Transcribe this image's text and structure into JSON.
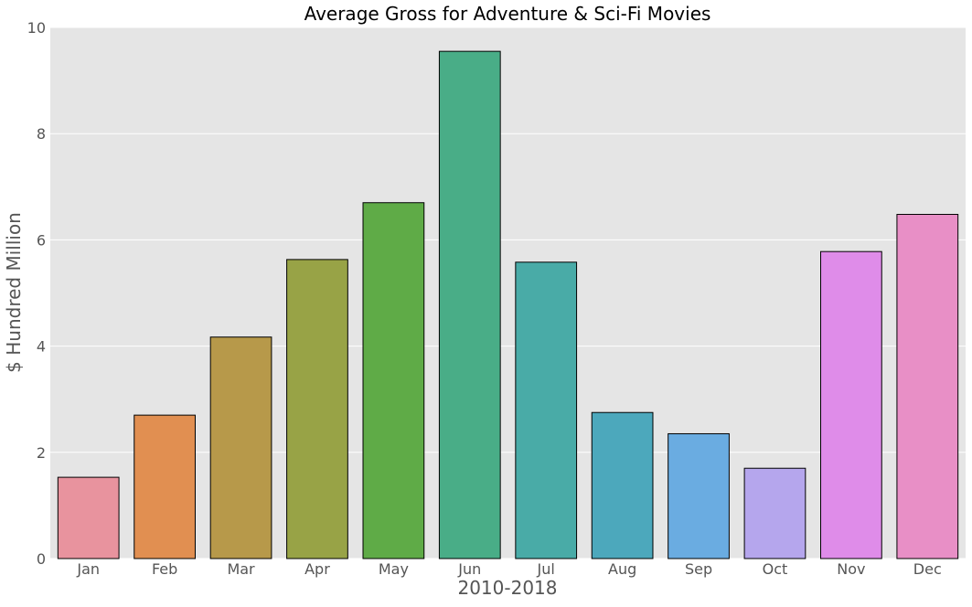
{
  "chart_data": {
    "type": "bar",
    "title": "Average Gross for Adventure & Sci-Fi Movies",
    "xlabel": "2010-2018",
    "ylabel": "$ Hundred Million",
    "categories": [
      "Jan",
      "Feb",
      "Mar",
      "Apr",
      "May",
      "Jun",
      "Jul",
      "Aug",
      "Sep",
      "Oct",
      "Nov",
      "Dec"
    ],
    "values": [
      1.53,
      2.7,
      4.17,
      5.63,
      6.7,
      9.55,
      5.58,
      2.75,
      2.35,
      1.7,
      5.78,
      6.48
    ],
    "ylim": [
      0,
      10
    ],
    "yticks": [
      0,
      2,
      4,
      6,
      8,
      10
    ],
    "grid": true,
    "legend": "none",
    "colors": [
      "#e8939e",
      "#e18f51",
      "#b7994a",
      "#98a346",
      "#5fab47",
      "#49ad87",
      "#49aba7",
      "#4ca8bc",
      "#6aace1",
      "#b5a6ed",
      "#df8ce9",
      "#e88fc6"
    ],
    "background": "#e5e5e5",
    "gridcolor": "#ffffff",
    "edgecolor": "#000000"
  }
}
